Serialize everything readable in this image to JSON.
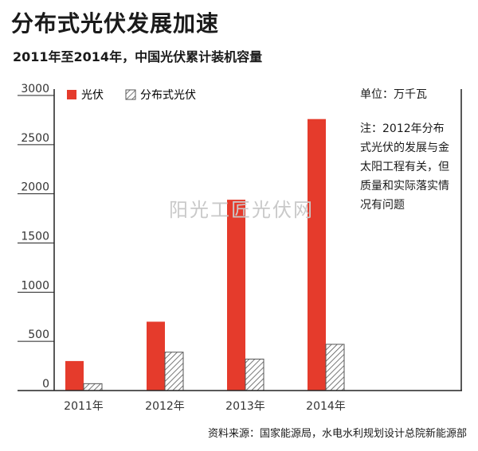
{
  "header": {
    "title": "分布式光伏发展加速",
    "subtitle": "2011年至2014年，中国光伏累计装机容量"
  },
  "unit_label": "单位：万千瓦",
  "note": "注：2012年分布式光伏的发展与金太阳工程有关，但质量和实际落实情况有问题",
  "watermark": "阳光工匠光伏网",
  "source": "资料来源：国家能源局，水电水利规划设计总院新能源部",
  "colors": {
    "pv": "#e53b2c",
    "distributed": "#555555"
  },
  "chart_data": {
    "type": "bar",
    "categories": [
      "2011年",
      "2012年",
      "2013年",
      "2014年"
    ],
    "series": [
      {
        "name": "光伏",
        "values": [
          300,
          700,
          1940,
          2760
        ]
      },
      {
        "name": "分布式光伏",
        "values": [
          70,
          390,
          320,
          470
        ]
      }
    ],
    "ylim": [
      0,
      3000
    ],
    "yticks": [
      0,
      500,
      1000,
      1500,
      2000,
      2500,
      3000
    ],
    "legend": "top-left",
    "grid": false
  }
}
